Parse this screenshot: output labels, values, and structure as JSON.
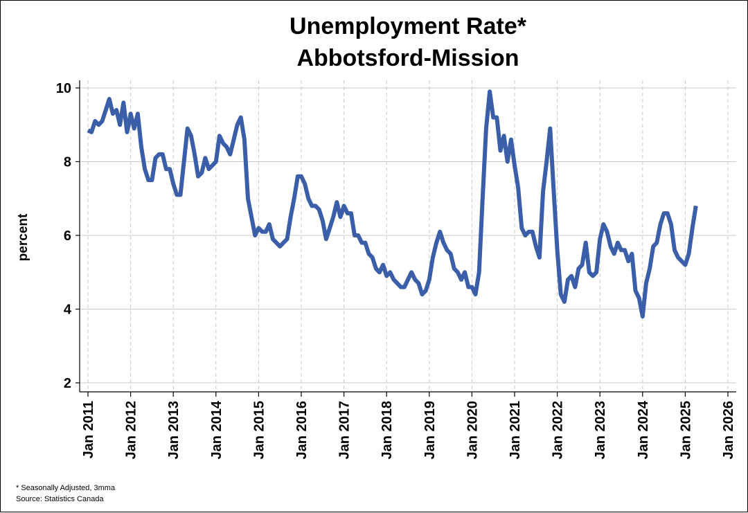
{
  "chart_data": {
    "type": "line",
    "title": "Unemployment Rate*",
    "subtitle": "Abbotsford-Mission",
    "xlabel": "",
    "ylabel": "percent",
    "ylim": [
      2,
      10
    ],
    "xlim": [
      "2011-01",
      "2026-01"
    ],
    "y_ticks": [
      "2",
      "4",
      "6",
      "8",
      "10"
    ],
    "x_ticks": [
      "Jan 2011",
      "Jan 2012",
      "Jan 2013",
      "Jan 2014",
      "Jan 2015",
      "Jan 2016",
      "Jan 2017",
      "Jan 2018",
      "Jan 2019",
      "Jan 2020",
      "Jan 2021",
      "Jan 2022",
      "Jan 2023",
      "Jan 2024",
      "Jan 2025",
      "Jan 2026"
    ],
    "grid": {
      "horizontal": "solid",
      "vertical": "dashed"
    },
    "series": [
      {
        "color": "#3a5ea8",
        "points": [
          [
            "2011-01",
            8.85
          ],
          [
            "2011-02",
            8.8
          ],
          [
            "2011-03",
            9.1
          ],
          [
            "2011-04",
            9.0
          ],
          [
            "2011-05",
            9.1
          ],
          [
            "2011-06",
            9.4
          ],
          [
            "2011-07",
            9.7
          ],
          [
            "2011-08",
            9.3
          ],
          [
            "2011-09",
            9.4
          ],
          [
            "2011-10",
            9.0
          ],
          [
            "2011-11",
            9.6
          ],
          [
            "2011-12",
            8.8
          ],
          [
            "2012-01",
            9.3
          ],
          [
            "2012-02",
            8.9
          ],
          [
            "2012-03",
            9.3
          ],
          [
            "2012-04",
            8.4
          ],
          [
            "2012-05",
            7.8
          ],
          [
            "2012-06",
            7.5
          ],
          [
            "2012-07",
            7.5
          ],
          [
            "2012-08",
            8.1
          ],
          [
            "2012-09",
            8.2
          ],
          [
            "2012-10",
            8.2
          ],
          [
            "2012-11",
            7.8
          ],
          [
            "2012-12",
            7.8
          ],
          [
            "2013-01",
            7.4
          ],
          [
            "2013-02",
            7.1
          ],
          [
            "2013-03",
            7.1
          ],
          [
            "2013-04",
            8.0
          ],
          [
            "2013-05",
            8.9
          ],
          [
            "2013-06",
            8.7
          ],
          [
            "2013-07",
            8.2
          ],
          [
            "2013-08",
            7.6
          ],
          [
            "2013-09",
            7.7
          ],
          [
            "2013-10",
            8.1
          ],
          [
            "2013-11",
            7.8
          ],
          [
            "2013-12",
            7.9
          ],
          [
            "2014-01",
            8.0
          ],
          [
            "2014-02",
            8.7
          ],
          [
            "2014-03",
            8.5
          ],
          [
            "2014-04",
            8.4
          ],
          [
            "2014-05",
            8.2
          ],
          [
            "2014-06",
            8.6
          ],
          [
            "2014-07",
            9.0
          ],
          [
            "2014-08",
            9.2
          ],
          [
            "2014-09",
            8.6
          ],
          [
            "2014-10",
            7.0
          ],
          [
            "2014-11",
            6.5
          ],
          [
            "2014-12",
            6.0
          ],
          [
            "2015-01",
            6.2
          ],
          [
            "2015-02",
            6.1
          ],
          [
            "2015-03",
            6.1
          ],
          [
            "2015-04",
            6.3
          ],
          [
            "2015-05",
            5.9
          ],
          [
            "2015-06",
            5.8
          ],
          [
            "2015-07",
            5.7
          ],
          [
            "2015-08",
            5.8
          ],
          [
            "2015-09",
            5.9
          ],
          [
            "2015-10",
            6.5
          ],
          [
            "2015-11",
            7.0
          ],
          [
            "2015-12",
            7.6
          ],
          [
            "2016-01",
            7.6
          ],
          [
            "2016-02",
            7.4
          ],
          [
            "2016-03",
            7.0
          ],
          [
            "2016-04",
            6.8
          ],
          [
            "2016-05",
            6.8
          ],
          [
            "2016-06",
            6.7
          ],
          [
            "2016-07",
            6.4
          ],
          [
            "2016-08",
            5.9
          ],
          [
            "2016-09",
            6.2
          ],
          [
            "2016-10",
            6.5
          ],
          [
            "2016-11",
            6.9
          ],
          [
            "2016-12",
            6.5
          ],
          [
            "2017-01",
            6.8
          ],
          [
            "2017-02",
            6.6
          ],
          [
            "2017-03",
            6.6
          ],
          [
            "2017-04",
            6.0
          ],
          [
            "2017-05",
            6.0
          ],
          [
            "2017-06",
            5.8
          ],
          [
            "2017-07",
            5.8
          ],
          [
            "2017-08",
            5.5
          ],
          [
            "2017-09",
            5.4
          ],
          [
            "2017-10",
            5.1
          ],
          [
            "2017-11",
            5.0
          ],
          [
            "2017-12",
            5.2
          ],
          [
            "2018-01",
            4.9
          ],
          [
            "2018-02",
            5.0
          ],
          [
            "2018-03",
            4.8
          ],
          [
            "2018-04",
            4.7
          ],
          [
            "2018-05",
            4.6
          ],
          [
            "2018-06",
            4.6
          ],
          [
            "2018-07",
            4.8
          ],
          [
            "2018-08",
            5.0
          ],
          [
            "2018-09",
            4.8
          ],
          [
            "2018-10",
            4.7
          ],
          [
            "2018-11",
            4.4
          ],
          [
            "2018-12",
            4.5
          ],
          [
            "2019-01",
            4.8
          ],
          [
            "2019-02",
            5.4
          ],
          [
            "2019-03",
            5.8
          ],
          [
            "2019-04",
            6.1
          ],
          [
            "2019-05",
            5.8
          ],
          [
            "2019-06",
            5.6
          ],
          [
            "2019-07",
            5.5
          ],
          [
            "2019-08",
            5.1
          ],
          [
            "2019-09",
            5.0
          ],
          [
            "2019-10",
            4.8
          ],
          [
            "2019-11",
            5.0
          ],
          [
            "2019-12",
            4.6
          ],
          [
            "2020-01",
            4.6
          ],
          [
            "2020-02",
            4.4
          ],
          [
            "2020-03",
            5.0
          ],
          [
            "2020-04",
            7.0
          ],
          [
            "2020-05",
            8.9
          ],
          [
            "2020-06",
            9.9
          ],
          [
            "2020-07",
            9.2
          ],
          [
            "2020-08",
            9.2
          ],
          [
            "2020-09",
            8.3
          ],
          [
            "2020-10",
            8.7
          ],
          [
            "2020-11",
            8.0
          ],
          [
            "2020-12",
            8.6
          ],
          [
            "2021-01",
            7.9
          ],
          [
            "2021-02",
            7.3
          ],
          [
            "2021-03",
            6.2
          ],
          [
            "2021-04",
            6.0
          ],
          [
            "2021-05",
            6.1
          ],
          [
            "2021-06",
            6.1
          ],
          [
            "2021-07",
            5.7
          ],
          [
            "2021-08",
            5.4
          ],
          [
            "2021-09",
            7.2
          ],
          [
            "2021-10",
            8.0
          ],
          [
            "2021-11",
            8.9
          ],
          [
            "2021-12",
            7.2
          ],
          [
            "2022-01",
            5.6
          ],
          [
            "2022-02",
            4.4
          ],
          [
            "2022-03",
            4.2
          ],
          [
            "2022-04",
            4.8
          ],
          [
            "2022-05",
            4.9
          ],
          [
            "2022-06",
            4.6
          ],
          [
            "2022-07",
            5.1
          ],
          [
            "2022-08",
            5.2
          ],
          [
            "2022-09",
            5.8
          ],
          [
            "2022-10",
            5.0
          ],
          [
            "2022-11",
            4.9
          ],
          [
            "2022-12",
            5.0
          ],
          [
            "2023-01",
            5.9
          ],
          [
            "2023-02",
            6.3
          ],
          [
            "2023-03",
            6.1
          ],
          [
            "2023-04",
            5.7
          ],
          [
            "2023-05",
            5.5
          ],
          [
            "2023-06",
            5.8
          ],
          [
            "2023-07",
            5.6
          ],
          [
            "2023-08",
            5.6
          ],
          [
            "2023-09",
            5.3
          ],
          [
            "2023-10",
            5.5
          ],
          [
            "2023-11",
            4.5
          ],
          [
            "2023-12",
            4.3
          ],
          [
            "2024-01",
            3.8
          ],
          [
            "2024-02",
            4.7
          ],
          [
            "2024-03",
            5.1
          ],
          [
            "2024-04",
            5.7
          ],
          [
            "2024-05",
            5.8
          ],
          [
            "2024-06",
            6.3
          ],
          [
            "2024-07",
            6.6
          ],
          [
            "2024-08",
            6.6
          ],
          [
            "2024-09",
            6.3
          ],
          [
            "2024-10",
            5.6
          ],
          [
            "2024-11",
            5.4
          ],
          [
            "2024-12",
            5.3
          ],
          [
            "2025-01",
            5.2
          ],
          [
            "2025-02",
            5.5
          ],
          [
            "2025-03",
            6.2
          ],
          [
            "2025-04",
            6.8
          ]
        ]
      }
    ]
  },
  "footnotes": {
    "note": "* Seasonally Adjusted, 3mma",
    "source": "Source: Statistics Canada"
  }
}
